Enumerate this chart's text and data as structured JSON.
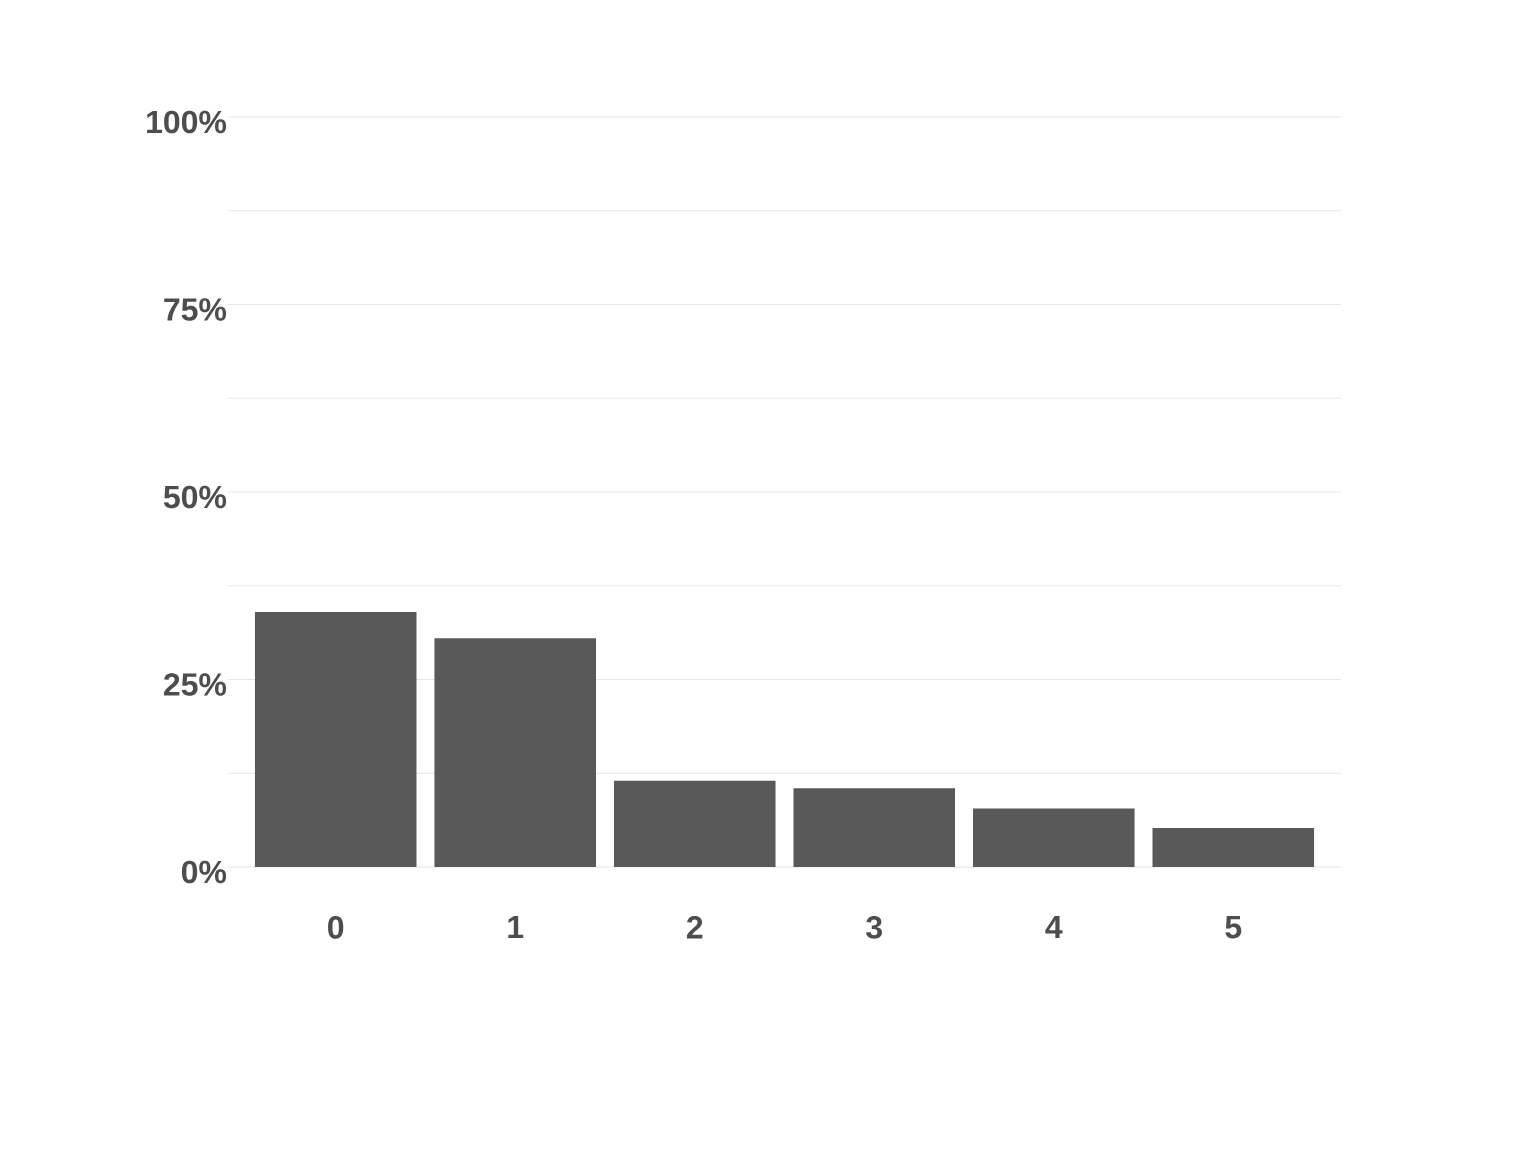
{
  "chart_data": {
    "type": "bar",
    "categories": [
      "0",
      "1",
      "2",
      "3",
      "4",
      "5"
    ],
    "values": [
      34.0,
      30.5,
      11.5,
      10.5,
      7.8,
      5.2
    ],
    "color": "#595959",
    "ylim": [
      0,
      100
    ],
    "yticks": [
      {
        "value": 0,
        "label": "0%"
      },
      {
        "value": 12.5,
        "label": null
      },
      {
        "value": 25,
        "label": "25%"
      },
      {
        "value": 37.5,
        "label": null
      },
      {
        "value": 50,
        "label": "50%"
      },
      {
        "value": 62.5,
        "label": null
      },
      {
        "value": 75,
        "label": "75%"
      },
      {
        "value": 87.5,
        "label": null
      },
      {
        "value": 100,
        "label": "100%"
      }
    ],
    "grid": "y"
  }
}
